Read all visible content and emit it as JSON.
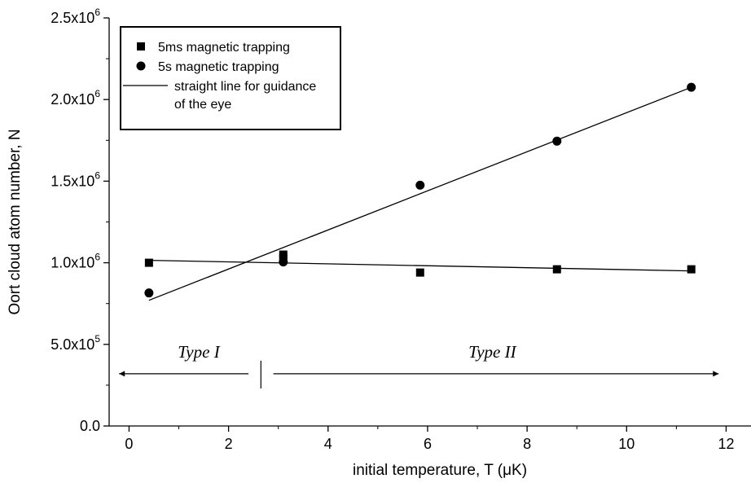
{
  "chart_data": {
    "type": "scatter",
    "xlabel": "initial temperature, T (μK)",
    "ylabel": "Oort cloud atom number, N",
    "xlim": [
      -0.4,
      12.5
    ],
    "ylim": [
      0,
      2500000
    ],
    "x_ticks": [
      0,
      2,
      4,
      6,
      8,
      10,
      12
    ],
    "x_tick_labels": [
      "0",
      "2",
      "4",
      "6",
      "8",
      "10",
      "12"
    ],
    "y_ticks": [
      0,
      500000,
      1000000,
      1500000,
      2000000,
      2500000
    ],
    "y_tick_labels": [
      {
        "mantissa": "0.0",
        "exp": ""
      },
      {
        "mantissa": "5.0x10",
        "exp": "5"
      },
      {
        "mantissa": "1.0x10",
        "exp": "6"
      },
      {
        "mantissa": "1.5x10",
        "exp": "6"
      },
      {
        "mantissa": "2.0x10",
        "exp": "6"
      },
      {
        "mantissa": "2.5x10",
        "exp": "6"
      }
    ],
    "series": [
      {
        "name": "5ms magnetic trapping",
        "marker": "square",
        "x": [
          0.4,
          3.1,
          3.1,
          5.85,
          8.6,
          11.3
        ],
        "y": [
          1000000,
          1050000,
          1030000,
          940000,
          960000,
          960000
        ]
      },
      {
        "name": "5s magnetic trapping",
        "marker": "circle",
        "x": [
          0.4,
          3.1,
          5.85,
          8.6,
          11.3
        ],
        "y": [
          815000,
          1005000,
          1475000,
          1745000,
          2075000
        ]
      }
    ],
    "guide_lines": [
      {
        "x": [
          0.4,
          11.3
        ],
        "y": [
          1015000,
          950000
        ]
      },
      {
        "x": [
          0.4,
          11.3
        ],
        "y": [
          770000,
          2075000
        ]
      }
    ],
    "legend": {
      "position": "top-left",
      "entries": [
        {
          "marker": "square",
          "label": "5ms magnetic trapping"
        },
        {
          "marker": "circle",
          "label": "5s magnetic trapping"
        },
        {
          "marker": "line",
          "label": "straight line for guidance",
          "label2": "of the eye"
        }
      ]
    },
    "annotations": [
      {
        "text": "Type I",
        "arrow_from": 2.4,
        "arrow_to": -0.2,
        "y": 320000,
        "text_x": 1.4,
        "text_y": 420000
      },
      {
        "text": "Type II",
        "arrow_from": 2.9,
        "arrow_to": 11.85,
        "y": 320000,
        "text_x": 7.3,
        "text_y": 420000
      }
    ],
    "divider": {
      "x": 2.65,
      "y_range": [
        230000,
        400000
      ]
    },
    "grid": false
  }
}
